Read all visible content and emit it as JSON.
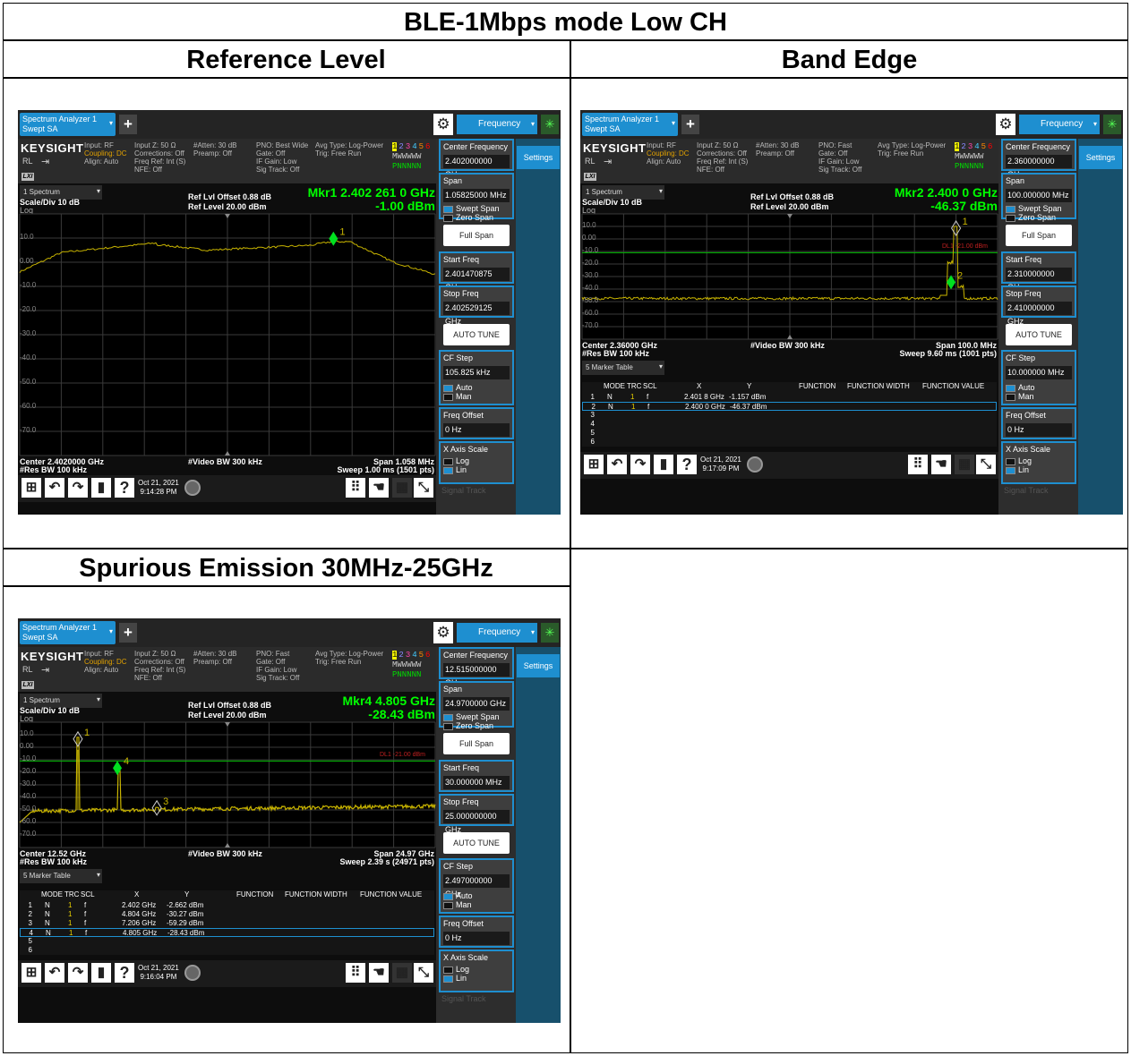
{
  "doc": {
    "title": "BLE-1Mbps mode Low CH",
    "col1": "Reference Level",
    "col2": "Band Edge",
    "col3": "Spurious Emission 30MHz-25GHz"
  },
  "colors": {
    "accent": "#1e8fd0",
    "trace": "#c8b400",
    "marker": "#00e020",
    "display_line": "#00c000"
  },
  "common": {
    "tab": "Spectrum Analyzer 1",
    "mode": "Swept SA",
    "menu": "Frequency",
    "settings": "Settings",
    "brand": "KEYSIGHT",
    "rl": "RL",
    "lxi": "LXI",
    "input": "Input: RF",
    "coupling": "Coupling: DC",
    "align": "Align: Auto",
    "col2": "Input Z: 50 Ω\nCorrections: Off\nFreq Ref: Int (S)\nNFE: Off",
    "col3": "#Atten: 30 dB\nPreamp: Off",
    "col5": "Avg Type: Log-Power\nTrig: Free Run",
    "trace_nums": "1 2 3 4 5 6",
    "trace_types": "M W W W W W",
    "trace_dets": "P N N N N N",
    "spectrum": "1 Spectrum",
    "scale": "Scale/Div 10 dB",
    "log": "Log",
    "ref_offset": "Ref Lvl Offset 0.88 dB",
    "ref_level": "Ref Level 20.00 dBm",
    "rbw": "#Res BW 100 kHz",
    "vbw": "#Video BW 300 kHz",
    "span_label": "Span",
    "swept_span": "Swept Span",
    "zero_span": "Zero Span",
    "full_span": "Full Span",
    "start_label": "Start Freq",
    "stop_label": "Stop Freq",
    "auto_tune": "AUTO TUNE",
    "cf_step_label": "CF Step",
    "auto": "Auto",
    "man": "Man",
    "freq_offset_label": "Freq Offset",
    "freq_offset": "0 Hz",
    "xaxis_label": "X Axis Scale",
    "xlog": "Log",
    "xlin": "Lin",
    "signal_track": "Signal Track",
    "center_label": "Center Frequency",
    "marker_table": "5 Marker Table",
    "table_headers": [
      "MODE",
      "TRC",
      "SCL",
      "X",
      "Y",
      "FUNCTION",
      "FUNCTION WIDTH",
      "FUNCTION VALUE"
    ],
    "help": "?"
  },
  "ref": {
    "pno": "PNO: Best Wide\nGate: Off\nIF Gain: Low\nSig Track: Off",
    "center_freq": "2.402000000 GHz",
    "span": "1.05825000 MHz",
    "start": "2.401470875 GHz",
    "stop": "2.402529125 GHz",
    "cf_step": "105.825 kHz",
    "mkr_line1": "Mkr1  2.402 261 0 GHz",
    "mkr_line2": "-1.00 dBm",
    "yticks": [
      "10.0",
      "0.00",
      "-10.0",
      "-20.0",
      "-30.0",
      "-40.0",
      "-50.0",
      "-60.0",
      "-70.0"
    ],
    "center_bot": "Center 2.4020000 GHz",
    "span_bot": "Span 1.058 MHz",
    "sweep": "Sweep 1.00 ms (1501 pts)",
    "date": "Oct 21, 2021",
    "time": "9:14:28 PM",
    "marker_label": "1"
  },
  "band": {
    "pno": "PNO: Fast\nGate: Off\nIF Gain: Low\nSig Track: Off",
    "center_freq": "2.360000000 GHz",
    "span": "100.000000 MHz",
    "start": "2.310000000 GHz",
    "stop": "2.410000000 GHz",
    "cf_step": "10.000000 MHz",
    "mkr_line1": "Mkr2  2.400 0 GHz",
    "mkr_line2": "-46.37 dBm",
    "yticks": [
      "10.0",
      "0.00",
      "-10.0",
      "-20.0",
      "-30.0",
      "-40.0",
      "-50.0",
      "-60.0",
      "-70.0"
    ],
    "dl": "DL1 -21.00 dBm",
    "center_bot": "Center 2.36000 GHz",
    "span_bot": "Span 100.0 MHz",
    "sweep": "Sweep 9.60 ms (1001 pts)",
    "date": "Oct 21, 2021",
    "time": "9:17:09 PM",
    "rows": [
      {
        "n": "1",
        "mode": "N",
        "trc": "1",
        "scl": "f",
        "x": "2.401 8 GHz",
        "y": "-1.157 dBm"
      },
      {
        "n": "2",
        "mode": "N",
        "trc": "1",
        "scl": "f",
        "x": "2.400 0 GHz",
        "y": "-46.37 dBm"
      },
      {
        "n": "3"
      },
      {
        "n": "4"
      },
      {
        "n": "5"
      },
      {
        "n": "6"
      }
    ]
  },
  "spur": {
    "pno": "PNO: Fast\nGate: Off\nIF Gain: Low\nSig Track: Off",
    "center_freq": "12.515000000 GHz",
    "span": "24.9700000 GHz",
    "start": "30.000000 MHz",
    "stop": "25.000000000 GHz",
    "cf_step": "2.497000000 GHz",
    "mkr_line1": "Mkr4  4.805 GHz",
    "mkr_line2": "-28.43 dBm",
    "yticks": [
      "10.0",
      "0.00",
      "-10.0",
      "-20.0",
      "-30.0",
      "-40.0",
      "-50.0",
      "-60.0",
      "-70.0"
    ],
    "dl": "DL1 -21.00 dBm",
    "center_bot": "Center 12.52 GHz",
    "span_bot": "Span 24.97 GHz",
    "sweep": "Sweep 2.39 s (24971 pts)",
    "date": "Oct 21, 2021",
    "time": "9:16:04 PM",
    "rows": [
      {
        "n": "1",
        "mode": "N",
        "trc": "1",
        "scl": "f",
        "x": "2.402 GHz",
        "y": "-2.662 dBm"
      },
      {
        "n": "2",
        "mode": "N",
        "trc": "1",
        "scl": "f",
        "x": "4.804 GHz",
        "y": "-30.27 dBm"
      },
      {
        "n": "3",
        "mode": "N",
        "trc": "1",
        "scl": "f",
        "x": "7.206 GHz",
        "y": "-59.29 dBm"
      },
      {
        "n": "4",
        "mode": "N",
        "trc": "1",
        "scl": "f",
        "x": "4.805 GHz",
        "y": "-28.43 dBm"
      },
      {
        "n": "5"
      },
      {
        "n": "6"
      }
    ]
  }
}
